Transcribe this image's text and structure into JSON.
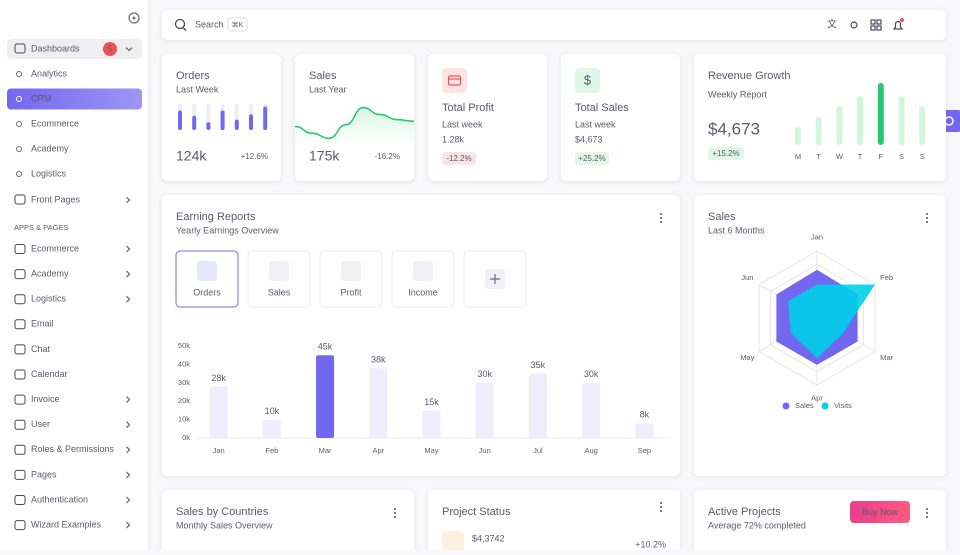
{
  "sidebar": {
    "dashboards": {
      "label": "Dashboards",
      "badge": "5"
    },
    "items": [
      {
        "label": "Analytics"
      },
      {
        "label": "CRM",
        "active": true
      },
      {
        "label": "Ecommerce"
      },
      {
        "label": "Academy"
      },
      {
        "label": "Logistics"
      }
    ],
    "front_pages": "Front Pages",
    "section": "APPS & PAGES",
    "apps": [
      {
        "label": "Ecommerce",
        "submenu": true
      },
      {
        "label": "Academy",
        "submenu": true
      },
      {
        "label": "Logistics",
        "submenu": true
      },
      {
        "label": "Email"
      },
      {
        "label": "Chat"
      },
      {
        "label": "Calendar"
      },
      {
        "label": "Invoice",
        "submenu": true
      },
      {
        "label": "User",
        "submenu": true
      },
      {
        "label": "Roles & Permissions",
        "submenu": true
      },
      {
        "label": "Pages",
        "submenu": true
      },
      {
        "label": "Authentication",
        "submenu": true
      },
      {
        "label": "Wizard Examples",
        "submenu": true
      }
    ]
  },
  "search": {
    "placeholder": "Search",
    "shortcut": "⌘K"
  },
  "orders": {
    "title": "Orders",
    "subtitle": "Last Week",
    "value": "124k",
    "change": "+12.6%",
    "bars": {
      "type": "bar",
      "values": [
        75,
        55,
        30,
        75,
        40,
        60,
        90
      ],
      "ylim": [
        0,
        100
      ],
      "color": "#7367f0"
    }
  },
  "sales": {
    "title": "Sales",
    "subtitle": "Last Year",
    "value": "175k",
    "change": "-16.2%",
    "line": {
      "type": "line",
      "values": [
        40,
        20,
        5,
        45,
        95,
        75,
        60,
        55
      ],
      "ylim": [
        0,
        100
      ],
      "color": "#28c76f"
    }
  },
  "profit": {
    "title": "Total Profit",
    "subtitle": "Last week",
    "value": "1.28k",
    "change": "-12.2%"
  },
  "total_sales": {
    "title": "Total Sales",
    "subtitle": "Last week",
    "value": "$4,673",
    "change": "+25.2%"
  },
  "revenue": {
    "title": "Revenue Growth",
    "subtitle": "Weekly Report",
    "value": "$4,673",
    "change": "+15.2%",
    "chart": {
      "type": "bar",
      "categories": [
        "M",
        "T",
        "W",
        "T",
        "F",
        "S",
        "S"
      ],
      "values": [
        29,
        45,
        63,
        79,
        100,
        79,
        63
      ],
      "ylim": [
        0,
        100
      ],
      "highlight": 4,
      "color": "#28c76f",
      "light_color": "#d4f4e2"
    }
  },
  "earning": {
    "title": "Earning Reports",
    "subtitle": "Yearly Earnings Overview",
    "tabs": [
      "Orders",
      "Sales",
      "Profit",
      "Income"
    ],
    "chart_data": {
      "type": "bar",
      "categories": [
        "Jan",
        "Feb",
        "Mar",
        "Apr",
        "May",
        "Jun",
        "Jul",
        "Aug",
        "Sep"
      ],
      "values": [
        28000,
        10000,
        45000,
        38000,
        15000,
        30000,
        35000,
        30000,
        8000
      ],
      "value_labels": [
        "28k",
        "10k",
        "45k",
        "38k",
        "15k",
        "30k",
        "35k",
        "30k",
        "8k"
      ],
      "ylim": [
        0,
        50000
      ],
      "yticks": [
        {
          "value": 0,
          "label": "0k"
        },
        {
          "value": 10000,
          "label": "10k"
        },
        {
          "value": 20000,
          "label": "20k"
        },
        {
          "value": 30000,
          "label": "30k"
        },
        {
          "value": 40000,
          "label": "40k"
        },
        {
          "value": 50000,
          "label": "50k"
        }
      ],
      "highlight": 2,
      "color": "#7367f0",
      "light_color": "#efedfd"
    }
  },
  "radar": {
    "title": "Sales",
    "subtitle": "Last 6 Months",
    "chart_data": {
      "type": "radar",
      "categories": [
        "Jan",
        "Feb",
        "Mar",
        "Apr",
        "May",
        "Jun"
      ],
      "rlim": [
        0,
        100
      ],
      "rticks": [
        20,
        40,
        60,
        80,
        100
      ],
      "series": [
        {
          "name": "Sales",
          "color": "#7367f0",
          "values": [
            72,
            70,
            70,
            70,
            70,
            70
          ]
        },
        {
          "name": "Visits",
          "color": "#00cfe8",
          "values": [
            50,
            100,
            45,
            60,
            45,
            50
          ]
        }
      ],
      "legend": "bottom"
    }
  },
  "countries": {
    "title": "Sales by Countries",
    "subtitle": "Monthly Sales Overview"
  },
  "project": {
    "title": "Project Status",
    "value": "$4,3742",
    "change": "+10.2%"
  },
  "active": {
    "title": "Active Projects",
    "subtitle": "Average 72% completed",
    "button": "Buy Now"
  }
}
